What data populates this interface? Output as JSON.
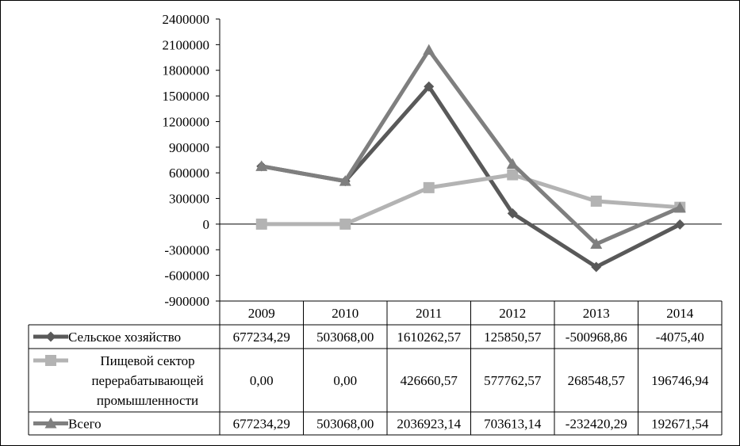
{
  "chart_data": {
    "type": "line",
    "categories": [
      "2009",
      "2010",
      "2011",
      "2012",
      "2013",
      "2014"
    ],
    "ylim": [
      -900000,
      2400000
    ],
    "yticks": [
      "2400000",
      "2100000",
      "1800000",
      "1500000",
      "1200000",
      "900000",
      "600000",
      "300000",
      "0",
      "-300000",
      "-600000",
      "-900000"
    ],
    "ytick_values": [
      2400000,
      2100000,
      1800000,
      1500000,
      1200000,
      900000,
      600000,
      300000,
      0,
      -300000,
      -600000,
      -900000
    ],
    "grid": false,
    "legend": "data-table",
    "series": [
      {
        "name": "Сельское хозяйство",
        "marker": "diamond",
        "color": "#595959",
        "values": [
          677234.29,
          503068.0,
          1610262.57,
          125850.57,
          -500968.86,
          -4075.4
        ],
        "labels": [
          "677234,29",
          "503068,00",
          "1610262,57",
          "125850,57",
          "-500968,86",
          "-4075,40"
        ]
      },
      {
        "name_lines": [
          "Пищевой сектор",
          "перерабатывающей",
          "промышленности"
        ],
        "marker": "square",
        "color": "#b3b3b3",
        "values": [
          0.0,
          0.0,
          426660.57,
          577762.57,
          268548.57,
          196746.94
        ],
        "labels": [
          "0,00",
          "0,00",
          "426660,57",
          "577762,57",
          "268548,57",
          "196746,94"
        ]
      },
      {
        "name": "Всего",
        "marker": "triangle",
        "color": "#7f7f7f",
        "values": [
          677234.29,
          503068.0,
          2036923.14,
          703613.14,
          -232420.29,
          192671.54
        ],
        "labels": [
          "677234,29",
          "503068,00",
          "2036923,14",
          "703613,14",
          "-232420,29",
          "192671,54"
        ]
      }
    ]
  }
}
